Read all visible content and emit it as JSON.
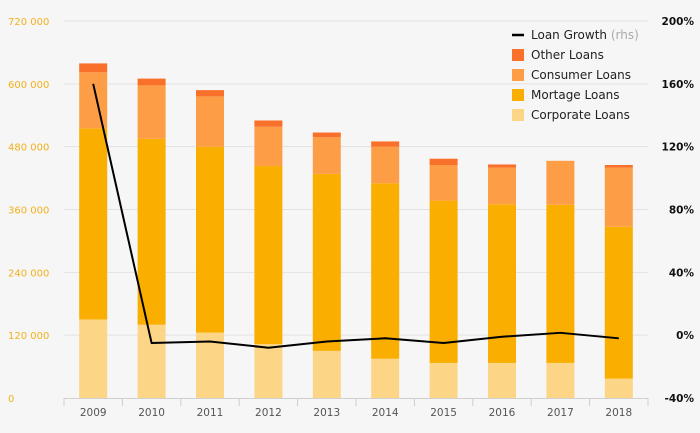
{
  "chart_data": {
    "type": "bar",
    "stacked": true,
    "categories": [
      "2009",
      "2010",
      "2011",
      "2012",
      "2013",
      "2014",
      "2015",
      "2016",
      "2017",
      "2018"
    ],
    "series": [
      {
        "name": "Corporate Loans",
        "color": "#fdd586",
        "values": [
          150000,
          140000,
          125000,
          103000,
          90000,
          75000,
          67000,
          67000,
          67000,
          37000
        ]
      },
      {
        "name": "Mortage Loans",
        "color": "#f9ae00",
        "values": [
          365000,
          355000,
          355000,
          340000,
          338000,
          335000,
          310000,
          303000,
          302000,
          290000
        ]
      },
      {
        "name": "Consumer Loans",
        "color": "#fd9e47",
        "values": [
          107000,
          102000,
          96000,
          75000,
          70000,
          70000,
          68000,
          70000,
          84000,
          113000
        ]
      },
      {
        "name": "Other Loans",
        "color": "#f8702a",
        "values": [
          17000,
          13000,
          12000,
          12000,
          9000,
          10000,
          12000,
          6000,
          0,
          5000
        ]
      }
    ],
    "line_series": {
      "name": "Loan Growth",
      "note": "(rhs)",
      "color": "#000000",
      "values": [
        160,
        -5,
        -4,
        -8,
        -4,
        -2,
        -5,
        -1,
        1.5,
        -2
      ]
    },
    "yleft": {
      "ticks": [
        "0",
        "120 000",
        "240 000",
        "360 000",
        "480 000",
        "600 000",
        "720 000"
      ],
      "ylim": [
        0,
        720000
      ],
      "color": "#f2b01e"
    },
    "yright": {
      "ticks": [
        "-40%",
        "0%",
        "40%",
        "80%",
        "120%",
        "160%",
        "200%"
      ],
      "ylim": [
        -40,
        200
      ]
    },
    "xlabel": "",
    "ylabel": "",
    "grid": true,
    "legend_position": "top-right",
    "legend_order": [
      "Loan Growth",
      "Other Loans",
      "Consumer Loans",
      "Mortage Loans",
      "Corporate Loans"
    ]
  }
}
